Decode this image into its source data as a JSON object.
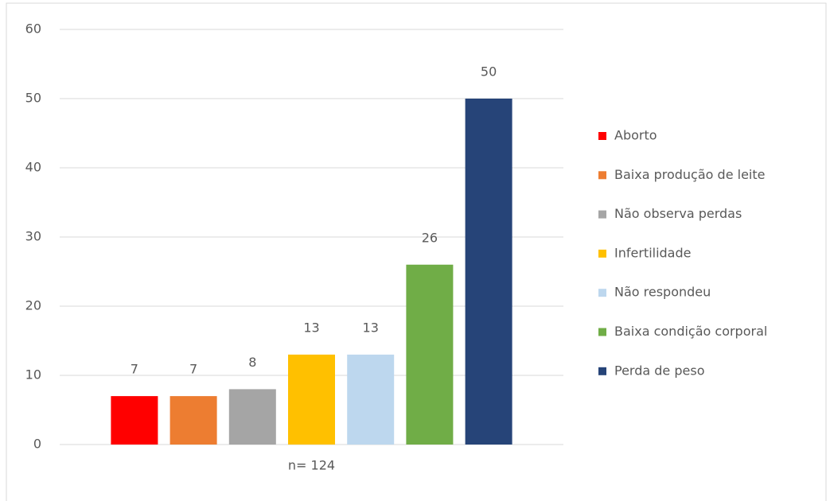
{
  "chart_data": {
    "type": "bar",
    "categories": [
      "n= 124"
    ],
    "series": [
      {
        "name": "Aborto",
        "color": "#ff0000",
        "values": [
          7
        ]
      },
      {
        "name": "Baixa produção de leite",
        "color": "#ed7d31",
        "values": [
          7
        ]
      },
      {
        "name": "Não observa perdas",
        "color": "#a5a5a5",
        "values": [
          8
        ]
      },
      {
        "name": "Infertilidade",
        "color": "#ffc000",
        "values": [
          13
        ]
      },
      {
        "name": "Não respondeu",
        "color": "#bdd7ee",
        "values": [
          13
        ]
      },
      {
        "name": "Baixa condição corporal",
        "color": "#70ad47",
        "values": [
          26
        ]
      },
      {
        "name": "Perda de peso",
        "color": "#264478",
        "values": [
          50
        ]
      }
    ],
    "ylim": [
      0,
      60
    ],
    "yticks": [
      0,
      10,
      20,
      30,
      40,
      50,
      60
    ],
    "grid": true,
    "legend": "right"
  }
}
